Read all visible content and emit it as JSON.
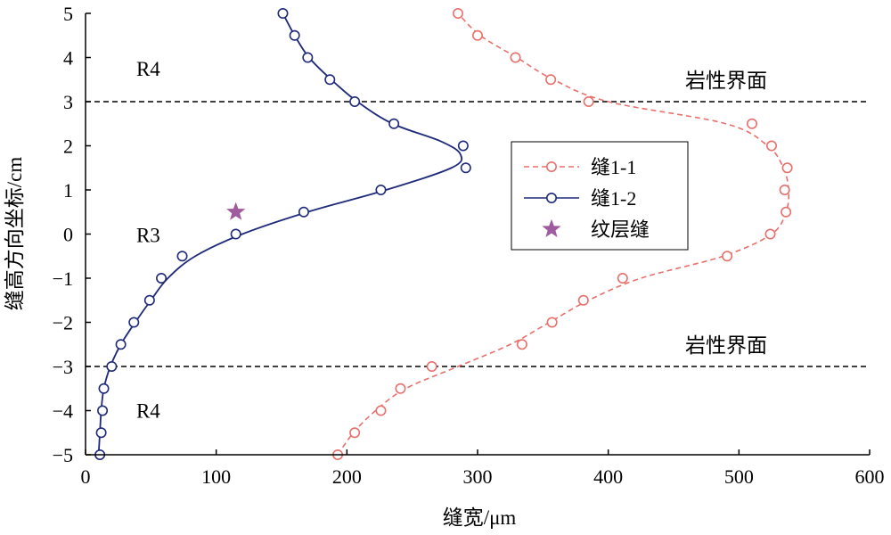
{
  "chart_data": {
    "type": "line",
    "xlabel": "缝宽/μm",
    "ylabel": "缝高方向坐标/cm",
    "xlim": [
      0,
      600
    ],
    "ylim": [
      -5,
      5
    ],
    "x_ticks": [
      0,
      100,
      200,
      300,
      400,
      500,
      600
    ],
    "y_ticks": [
      -5,
      -4,
      -3,
      -2,
      -1,
      0,
      1,
      2,
      3,
      4,
      5
    ],
    "grid": false,
    "legend_position": "center-right",
    "boundary_lines": [
      {
        "y": 3,
        "label": "岩性界面"
      },
      {
        "y": -3,
        "label": "岩性界面"
      }
    ],
    "region_labels": [
      {
        "x": 48,
        "y": 3.75,
        "text": "R4"
      },
      {
        "x": 48,
        "y": -0.02,
        "text": "R3"
      },
      {
        "x": 48,
        "y": -4.0,
        "text": "R4"
      }
    ],
    "series": [
      {
        "name": "缝1-1",
        "color": "#e8706c",
        "line_style": "dashed",
        "marker": "open-circle",
        "points": [
          {
            "x": 193,
            "y": -5.0
          },
          {
            "x": 206,
            "y": -4.5
          },
          {
            "x": 226,
            "y": -4.0
          },
          {
            "x": 241,
            "y": -3.5
          },
          {
            "x": 265,
            "y": -3.0
          },
          {
            "x": 334,
            "y": -2.5
          },
          {
            "x": 357,
            "y": -2.0
          },
          {
            "x": 381,
            "y": -1.5
          },
          {
            "x": 411,
            "y": -1.0
          },
          {
            "x": 491,
            "y": -0.5
          },
          {
            "x": 524,
            "y": 0.0
          },
          {
            "x": 536,
            "y": 0.5
          },
          {
            "x": 535,
            "y": 1.0
          },
          {
            "x": 537,
            "y": 1.5
          },
          {
            "x": 525,
            "y": 2.0
          },
          {
            "x": 510,
            "y": 2.5
          },
          {
            "x": 385,
            "y": 3.0
          },
          {
            "x": 356,
            "y": 3.5
          },
          {
            "x": 329,
            "y": 4.0
          },
          {
            "x": 300,
            "y": 4.5
          },
          {
            "x": 285,
            "y": 5.0
          }
        ],
        "curve": [
          {
            "x": 193,
            "y": -5.0
          },
          {
            "x": 205,
            "y": -4.5
          },
          {
            "x": 222,
            "y": -4.0
          },
          {
            "x": 245,
            "y": -3.5
          },
          {
            "x": 285,
            "y": -3.0
          },
          {
            "x": 325,
            "y": -2.5
          },
          {
            "x": 355,
            "y": -2.0
          },
          {
            "x": 385,
            "y": -1.5
          },
          {
            "x": 425,
            "y": -1.0
          },
          {
            "x": 488,
            "y": -0.5
          },
          {
            "x": 525,
            "y": 0.0
          },
          {
            "x": 536,
            "y": 0.5
          },
          {
            "x": 538,
            "y": 1.0
          },
          {
            "x": 534,
            "y": 1.5
          },
          {
            "x": 522,
            "y": 2.0
          },
          {
            "x": 490,
            "y": 2.5
          },
          {
            "x": 400,
            "y": 3.0
          },
          {
            "x": 358,
            "y": 3.5
          },
          {
            "x": 330,
            "y": 4.0
          },
          {
            "x": 302,
            "y": 4.5
          },
          {
            "x": 285,
            "y": 5.0
          }
        ]
      },
      {
        "name": "缝1-2",
        "color": "#1f2a7a",
        "line_style": "solid",
        "marker": "open-circle",
        "points": [
          {
            "x": 11,
            "y": -5.0
          },
          {
            "x": 12,
            "y": -4.5
          },
          {
            "x": 13,
            "y": -4.0
          },
          {
            "x": 14,
            "y": -3.5
          },
          {
            "x": 20,
            "y": -3.0
          },
          {
            "x": 27,
            "y": -2.5
          },
          {
            "x": 37,
            "y": -2.0
          },
          {
            "x": 49,
            "y": -1.5
          },
          {
            "x": 58,
            "y": -1.0
          },
          {
            "x": 74,
            "y": -0.5
          },
          {
            "x": 115,
            "y": 0.0
          },
          {
            "x": 167,
            "y": 0.5
          },
          {
            "x": 226,
            "y": 1.0
          },
          {
            "x": 291,
            "y": 1.5
          },
          {
            "x": 289,
            "y": 2.0
          },
          {
            "x": 236,
            "y": 2.5
          },
          {
            "x": 206,
            "y": 3.0
          },
          {
            "x": 187,
            "y": 3.5
          },
          {
            "x": 170,
            "y": 4.0
          },
          {
            "x": 160,
            "y": 4.5
          },
          {
            "x": 151,
            "y": 5.0
          }
        ],
        "curve": [
          {
            "x": 10,
            "y": -5.0
          },
          {
            "x": 11,
            "y": -4.5
          },
          {
            "x": 12,
            "y": -4.0
          },
          {
            "x": 14,
            "y": -3.5
          },
          {
            "x": 19,
            "y": -3.0
          },
          {
            "x": 27,
            "y": -2.5
          },
          {
            "x": 38,
            "y": -2.0
          },
          {
            "x": 50,
            "y": -1.5
          },
          {
            "x": 63,
            "y": -1.0
          },
          {
            "x": 84,
            "y": -0.5
          },
          {
            "x": 120,
            "y": 0.0
          },
          {
            "x": 170,
            "y": 0.5
          },
          {
            "x": 230,
            "y": 1.0
          },
          {
            "x": 280,
            "y": 1.5
          },
          {
            "x": 287,
            "y": 1.8
          },
          {
            "x": 272,
            "y": 2.1
          },
          {
            "x": 235,
            "y": 2.5
          },
          {
            "x": 208,
            "y": 3.0
          },
          {
            "x": 188,
            "y": 3.5
          },
          {
            "x": 171,
            "y": 4.0
          },
          {
            "x": 160,
            "y": 4.5
          },
          {
            "x": 151,
            "y": 5.0
          }
        ]
      },
      {
        "name": "纹层缝",
        "color": "#a05a9e",
        "line_style": "none",
        "marker": "star",
        "points": [
          {
            "x": 115,
            "y": 0.5
          }
        ]
      }
    ]
  }
}
